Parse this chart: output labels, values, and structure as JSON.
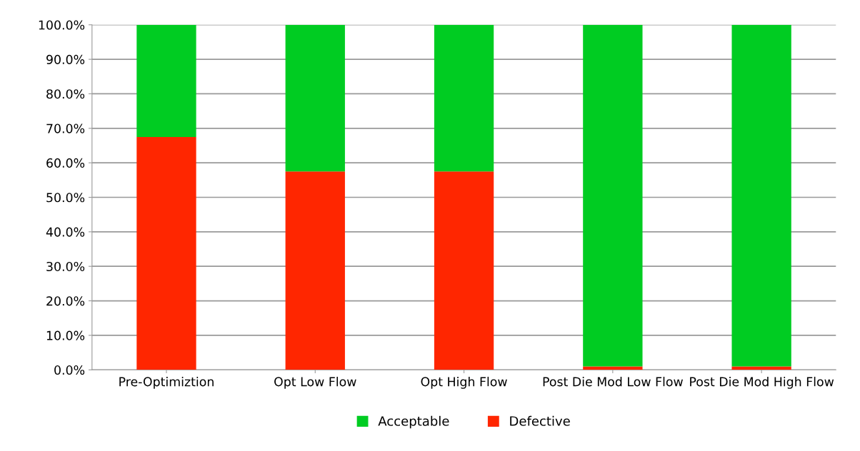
{
  "chart_data": {
    "type": "bar",
    "stacked": true,
    "categories": [
      "Pre-Optimiztion",
      "Opt Low Flow",
      "Opt High Flow",
      "Post Die Mod Low Flow",
      "Post Die Mod High Flow"
    ],
    "series": [
      {
        "name": "Defective",
        "color": "#ff2600",
        "values": [
          67.5,
          57.5,
          57.5,
          1.0,
          1.0
        ]
      },
      {
        "name": "Acceptable",
        "color": "#00cc22",
        "values": [
          32.5,
          42.5,
          42.5,
          99.0,
          99.0
        ]
      }
    ],
    "ylim": [
      0,
      100
    ],
    "yticks": [
      {
        "value": 0,
        "label": "0.0%"
      },
      {
        "value": 10,
        "label": "10.0%"
      },
      {
        "value": 20,
        "label": "20.0%"
      },
      {
        "value": 30,
        "label": "30.0%"
      },
      {
        "value": 40,
        "label": "40.0%"
      },
      {
        "value": 50,
        "label": "50.0%"
      },
      {
        "value": 60,
        "label": "60.0%"
      },
      {
        "value": 70,
        "label": "70.0%"
      },
      {
        "value": 80,
        "label": "80.0%"
      },
      {
        "value": 90,
        "label": "90.0%"
      },
      {
        "value": 100,
        "label": "100.0%"
      }
    ],
    "grid": "y",
    "legend": "bottom"
  }
}
